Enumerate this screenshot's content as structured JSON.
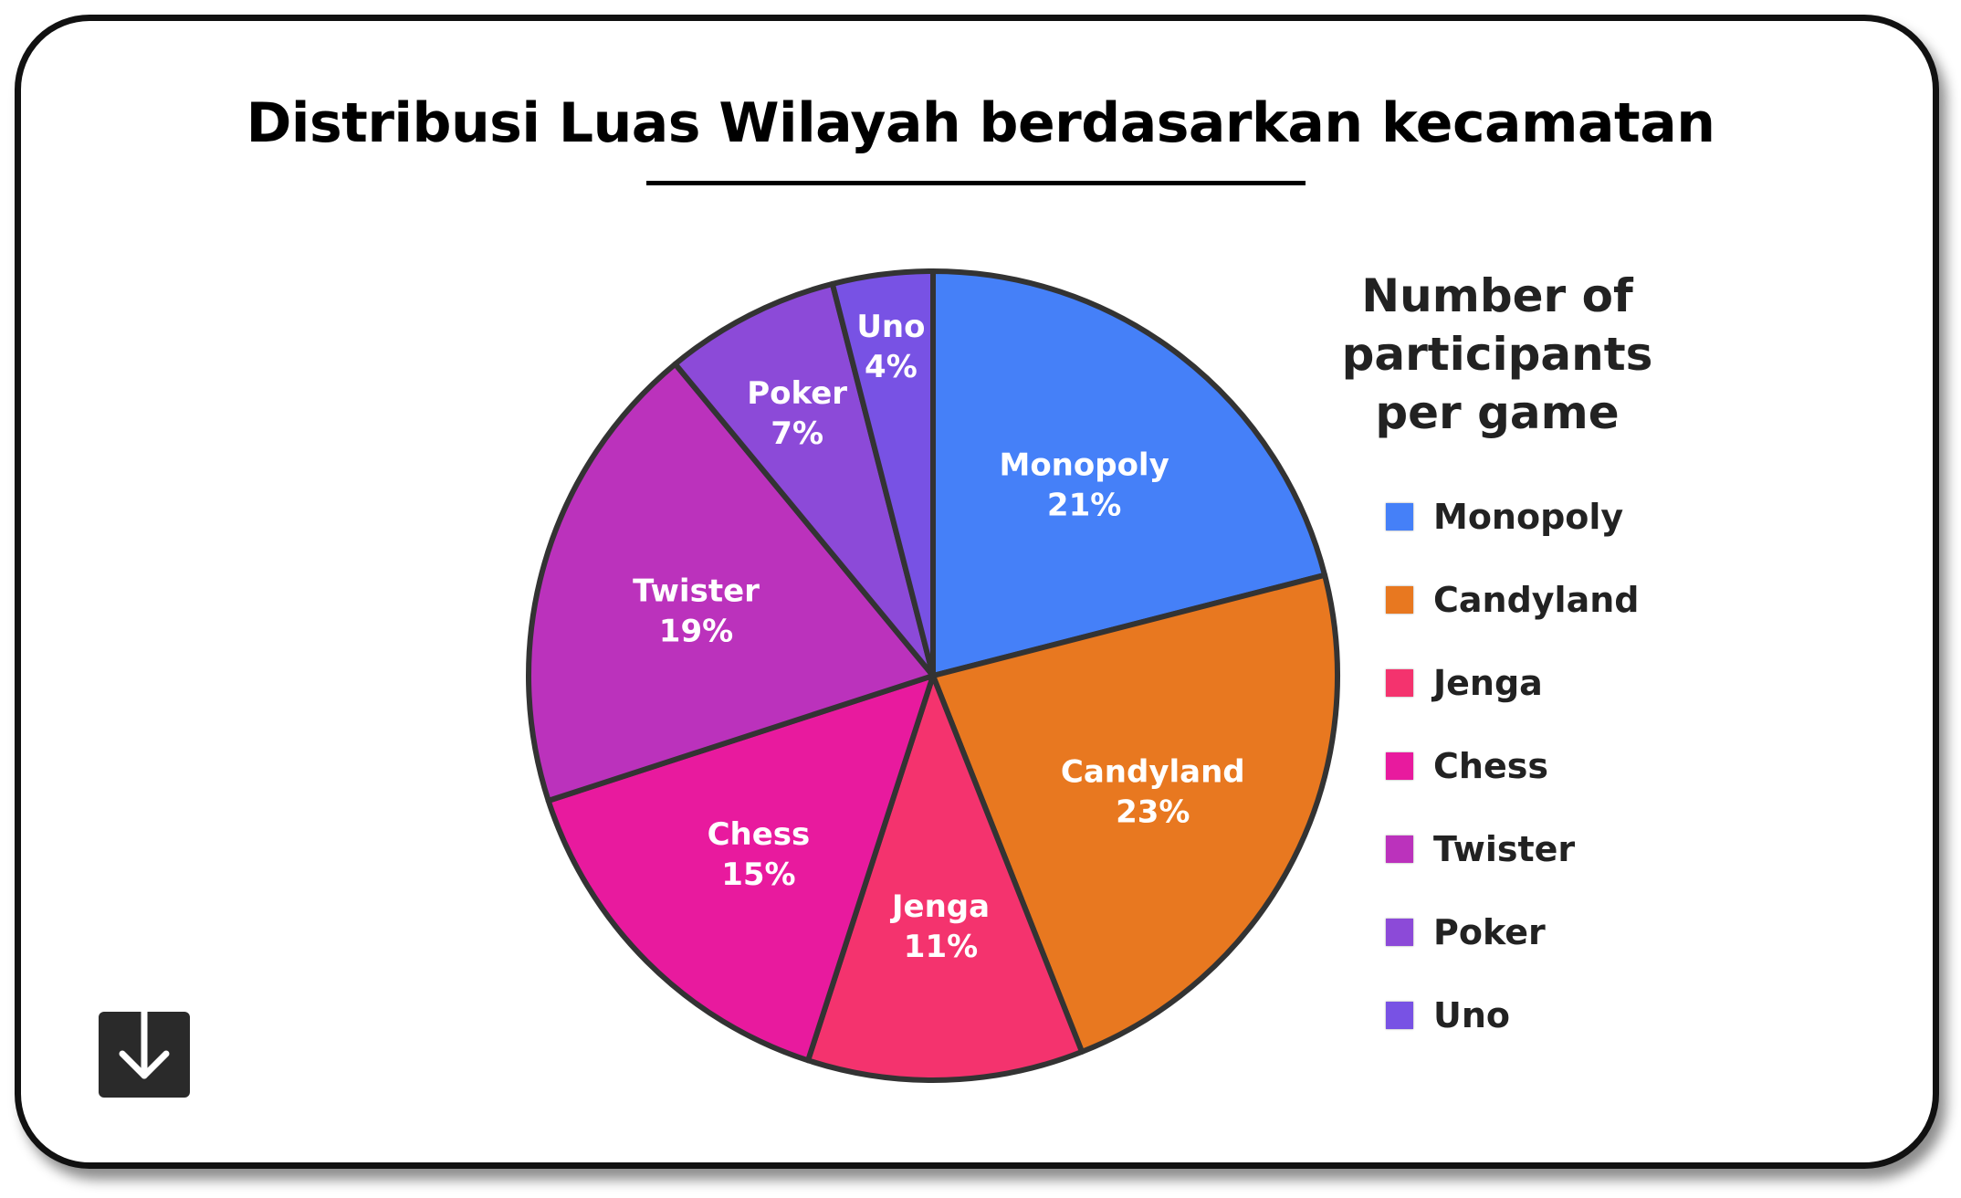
{
  "chart_data": {
    "type": "pie",
    "title": "Distribusi Luas Wilayah berdasarkan kecamatan",
    "legend_title_lines": [
      "Number of",
      "participants",
      "per game"
    ],
    "legend_position": "right",
    "categories": [
      "Monopoly",
      "Candyland",
      "Jenga",
      "Chess",
      "Twister",
      "Poker",
      "Uno"
    ],
    "values": [
      21,
      23,
      11,
      15,
      19,
      7,
      4
    ],
    "value_labels": [
      "21%",
      "23%",
      "11%",
      "15%",
      "19%",
      "7%",
      "4%"
    ],
    "colors": [
      "#4580f8",
      "#e87820",
      "#f4336e",
      "#e81a9e",
      "#bb32bc",
      "#8c4ad8",
      "#7852e4"
    ],
    "label_color": "#ffffff",
    "outline_color": "#333333"
  },
  "download": {
    "icon": "arrow-down-icon"
  }
}
